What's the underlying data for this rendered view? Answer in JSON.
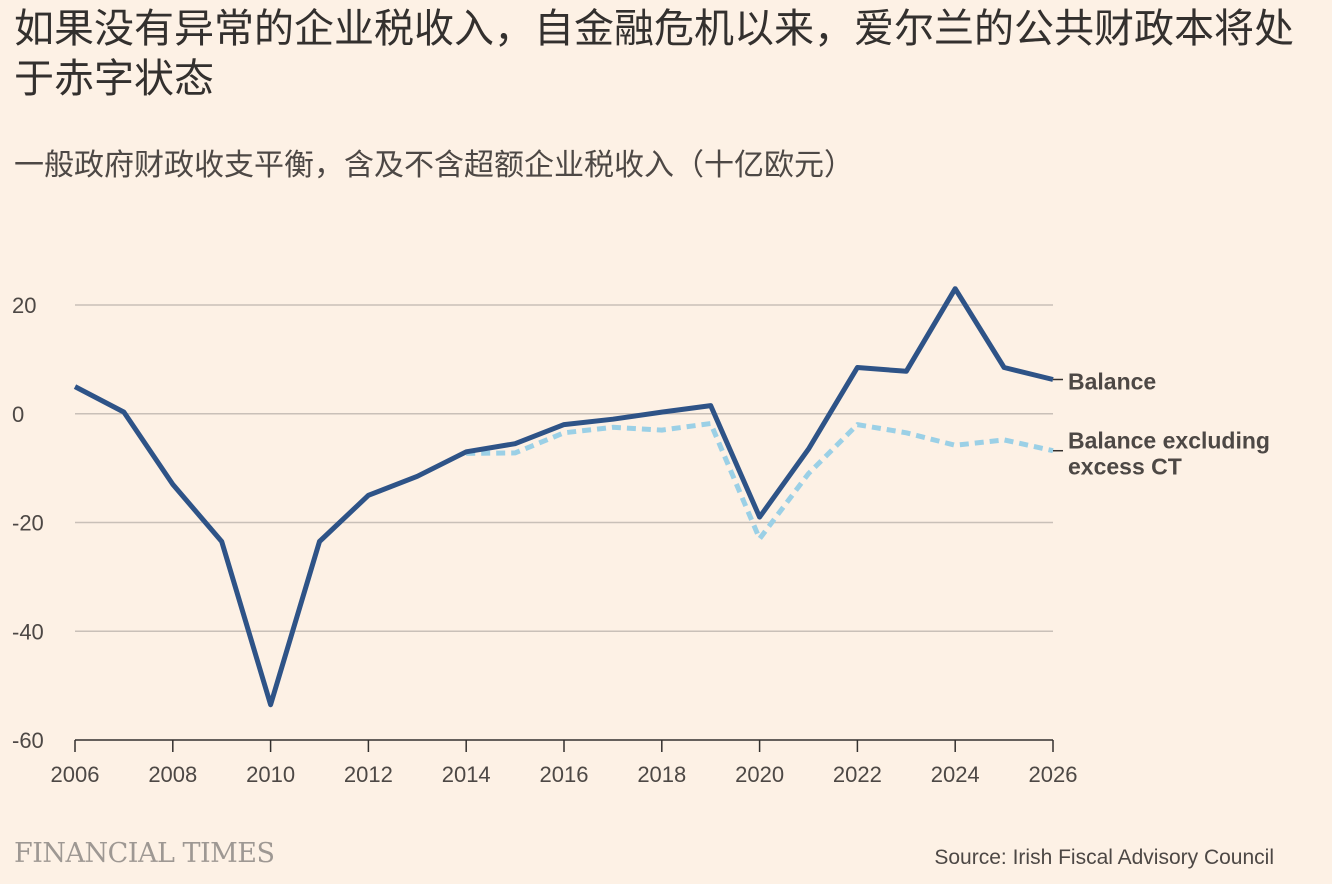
{
  "header": {
    "title": "如果没有异常的企业税收入，自金融危机以来，爱尔兰的公共财政本将处于赤字状态",
    "subtitle": "一般政府财政收支平衡，含及不含超额企业税收入（十亿欧元）"
  },
  "footer": {
    "logo_text": "FINANCIAL TIMES",
    "source": "Source: Irish Fiscal Advisory Council"
  },
  "colors": {
    "background": "#FDF1E5",
    "balance": "#2E5387",
    "balance_excluding": "#9BD0E6",
    "gridline": "#C9C0B8",
    "text": "#33302E"
  },
  "chart_data": {
    "type": "line",
    "x": [
      2006,
      2007,
      2008,
      2009,
      2010,
      2011,
      2012,
      2013,
      2014,
      2015,
      2016,
      2017,
      2018,
      2019,
      2020,
      2021,
      2022,
      2023,
      2024,
      2025,
      2026
    ],
    "series": [
      {
        "name": "Balance",
        "style": "solid",
        "color": "#2E5387",
        "values": [
          5,
          0.3,
          -13,
          -23.5,
          -53.5,
          -23.5,
          -15,
          -11.5,
          -7,
          -5.5,
          -2,
          -1,
          0.3,
          1.5,
          -19,
          -6.5,
          8.5,
          7.8,
          23,
          8.5,
          6.3
        ]
      },
      {
        "name": "Balance excluding excess CT",
        "label_lines": [
          "Balance excluding",
          "excess CT"
        ],
        "style": "dashed",
        "color": "#9BD0E6",
        "values": [
          null,
          null,
          null,
          null,
          null,
          null,
          null,
          null,
          -7.3,
          -7.2,
          -3.5,
          -2.5,
          -3,
          -1.8,
          -23,
          -11,
          -2,
          -3.5,
          -5.8,
          -4.8,
          -6.8
        ]
      }
    ],
    "ylim": [
      -60,
      20
    ],
    "yticks": [
      20,
      0,
      -20,
      -40,
      -60
    ],
    "ytick_labels": [
      "20",
      "0",
      "-20",
      "-40",
      "-60"
    ],
    "xlim": [
      2006,
      2026
    ],
    "xticks": [
      2006,
      2008,
      2010,
      2012,
      2014,
      2016,
      2018,
      2020,
      2022,
      2024,
      2026
    ],
    "xtick_labels": [
      "2006",
      "2008",
      "2010",
      "2012",
      "2014",
      "2016",
      "2018",
      "2020",
      "2022",
      "2024",
      "2026"
    ],
    "grid": true,
    "legend": "direct labels at right end of lines"
  }
}
